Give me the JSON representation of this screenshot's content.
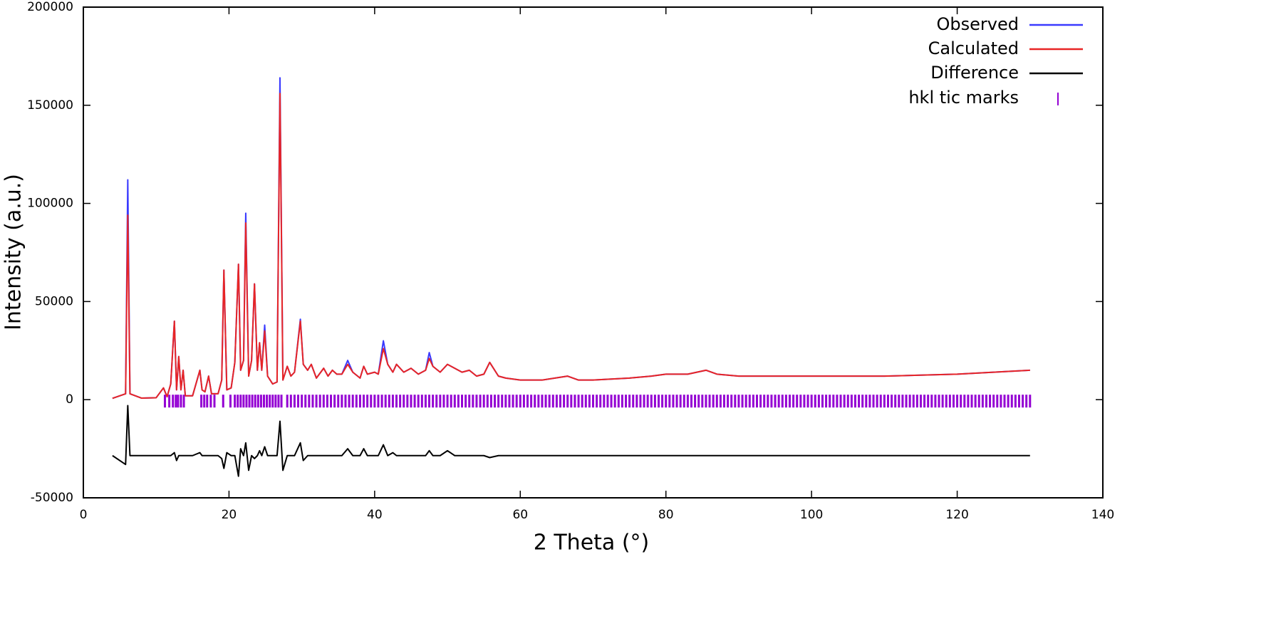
{
  "chart_data": {
    "type": "line",
    "xlabel": "2 Theta (°)",
    "ylabel": "Intensity (a.u.)",
    "xlim": [
      0,
      140
    ],
    "xticks": [
      0,
      20,
      40,
      60,
      80,
      100,
      120,
      140
    ],
    "ylim": [
      -50000,
      200000
    ],
    "yticks": [
      -50000,
      0,
      50000,
      100000,
      150000,
      200000
    ],
    "legend": "upper right",
    "x": [
      4,
      5.8,
      6.1,
      6.4,
      8,
      10,
      11,
      11.5,
      12,
      12.5,
      12.8,
      13.1,
      13.4,
      13.7,
      14,
      15,
      16,
      16.3,
      16.7,
      17.2,
      17.6,
      18.5,
      19,
      19.3,
      19.7,
      20.3,
      20.8,
      21.3,
      21.6,
      22,
      22.3,
      22.7,
      23.1,
      23.5,
      23.9,
      24.2,
      24.5,
      24.9,
      25.3,
      26,
      26.6,
      27,
      27.4,
      28,
      28.5,
      29,
      29.8,
      30.2,
      30.8,
      31.3,
      32,
      33,
      33.6,
      34.2,
      34.8,
      35.5,
      36.3,
      37,
      38,
      38.5,
      39,
      40,
      40.5,
      41.2,
      41.8,
      42.5,
      43,
      44,
      45,
      46,
      47,
      47.5,
      48,
      49,
      50,
      51,
      52,
      53,
      54,
      55,
      55.8,
      57,
      58,
      60,
      63,
      66.5,
      68,
      70,
      75,
      78,
      80,
      83,
      85.5,
      87,
      90,
      95,
      100,
      105,
      110,
      115,
      120,
      125,
      130
    ],
    "series": [
      {
        "name": "Observed",
        "color": "#3a3aff",
        "values": [
          700,
          3000,
          112000,
          3000,
          800,
          1000,
          6000,
          1500,
          8000,
          40000,
          5000,
          22000,
          5000,
          15000,
          2000,
          2000,
          15000,
          5000,
          4000,
          12000,
          3000,
          3000,
          10000,
          66000,
          5000,
          6000,
          19000,
          69000,
          15000,
          20000,
          95000,
          12000,
          20000,
          59000,
          15000,
          29000,
          15000,
          38000,
          12000,
          8000,
          9000,
          164000,
          10000,
          17000,
          12000,
          14000,
          41000,
          18000,
          15000,
          18000,
          11000,
          16000,
          12000,
          15000,
          13000,
          13000,
          20000,
          14000,
          11000,
          17000,
          13000,
          14000,
          13000,
          30000,
          18000,
          14000,
          18000,
          14000,
          16000,
          13000,
          15000,
          24000,
          17000,
          14000,
          18000,
          16000,
          14000,
          15000,
          12000,
          13000,
          19000,
          12000,
          11000,
          10000,
          10000,
          12000,
          10000,
          10000,
          11000,
          12000,
          13000,
          13000,
          15000,
          13000,
          12000,
          12000,
          12000,
          12000,
          12000,
          12500,
          13000,
          14000,
          15000
        ]
      },
      {
        "name": "Calculated",
        "color": "#e82525",
        "values": [
          700,
          3000,
          94000,
          3000,
          800,
          1000,
          6000,
          1500,
          8000,
          40000,
          5000,
          22000,
          5000,
          15000,
          2000,
          2000,
          15000,
          5000,
          4000,
          12000,
          3000,
          3000,
          10000,
          66000,
          5000,
          6000,
          19000,
          69000,
          15000,
          20000,
          90000,
          12000,
          20000,
          59000,
          15000,
          29000,
          15000,
          35000,
          12000,
          8000,
          9000,
          156000,
          10000,
          17000,
          12000,
          14000,
          40000,
          18000,
          15000,
          18000,
          11000,
          16000,
          12000,
          15000,
          13000,
          13000,
          18000,
          14000,
          11000,
          17000,
          13000,
          14000,
          13000,
          26000,
          18000,
          14000,
          18000,
          14000,
          16000,
          13000,
          15000,
          21000,
          17000,
          14000,
          18000,
          16000,
          14000,
          15000,
          12000,
          13000,
          19000,
          12000,
          11000,
          10000,
          10000,
          12000,
          10000,
          10000,
          11000,
          12000,
          13000,
          13000,
          15000,
          13000,
          12000,
          12000,
          12000,
          12000,
          12000,
          12500,
          13000,
          14000,
          15000
        ]
      },
      {
        "name": "Difference",
        "color": "#000000",
        "values": [
          -28500,
          -33000,
          -3000,
          -28500,
          -28500,
          -28500,
          -28500,
          -28500,
          -28500,
          -27000,
          -31000,
          -28500,
          -28500,
          -28500,
          -28500,
          -28500,
          -27000,
          -28500,
          -28500,
          -28500,
          -28500,
          -28500,
          -30000,
          -35000,
          -27000,
          -28500,
          -28500,
          -39000,
          -25000,
          -28500,
          -22000,
          -36000,
          -28500,
          -30000,
          -28500,
          -26000,
          -28500,
          -24000,
          -28500,
          -28500,
          -28500,
          -11000,
          -36000,
          -28500,
          -28500,
          -28500,
          -22000,
          -31000,
          -28500,
          -28500,
          -28500,
          -28500,
          -28500,
          -28500,
          -28500,
          -28500,
          -25000,
          -28500,
          -28500,
          -25000,
          -28500,
          -28500,
          -28500,
          -23000,
          -28500,
          -27000,
          -28500,
          -28500,
          -28500,
          -28500,
          -28500,
          -26000,
          -28500,
          -28500,
          -26000,
          -28500,
          -28500,
          -28500,
          -28500,
          -28500,
          -29500,
          -28500,
          -28500,
          -28500,
          -28500,
          -28500,
          -28500,
          -28500,
          -28500,
          -28500,
          -28500,
          -28500,
          -28500,
          -28500,
          -28500,
          -28500,
          -28500,
          -28500,
          -28500,
          -28500,
          -28500,
          -28500,
          -28500
        ]
      }
    ],
    "tick_marks": {
      "name": "hkl tic marks",
      "color": "#9400d3",
      "x": [
        11.2,
        11.8,
        12.3,
        12.7,
        13.0,
        13.4,
        13.8,
        16.2,
        16.6,
        17.0,
        17.5,
        18.0,
        19.2,
        20.2,
        20.8,
        21.2,
        21.6,
        22.0,
        22.4,
        22.8,
        23.2,
        23.6,
        24.0,
        24.4,
        24.8,
        25.2,
        25.6,
        26.0,
        26.4,
        26.8,
        27.2,
        28,
        28.5,
        29,
        29.5,
        30,
        30.5,
        31,
        31.5,
        32,
        32.5,
        33,
        33.5,
        34,
        34.5,
        35,
        35.5,
        36,
        36.5,
        37,
        37.5,
        38,
        38.5,
        39,
        39.5,
        40,
        40.5,
        41,
        41.5,
        42,
        42.5,
        43,
        43.5,
        44,
        44.5,
        45,
        45.5,
        46,
        46.5,
        47,
        47.5,
        48,
        48.5,
        49,
        49.5,
        50,
        50.5,
        51,
        51.5,
        52,
        52.5,
        53,
        53.5,
        54,
        54.5,
        55,
        55.5,
        56,
        56.5,
        57,
        57.5,
        58,
        58.5,
        59,
        59.5,
        60,
        60.5,
        61,
        61.5,
        62,
        62.5,
        63,
        63.5,
        64,
        64.5,
        65,
        65.5,
        66,
        66.5,
        67,
        67.5,
        68,
        68.5,
        69,
        69.5,
        70,
        70.5,
        71,
        71.5,
        72,
        72.5,
        73,
        73.5,
        74,
        74.5,
        75,
        75.5,
        76,
        76.5,
        77,
        77.5,
        78,
        78.5,
        79,
        79.5,
        80,
        80.5,
        81,
        81.5,
        82,
        82.5,
        83,
        83.5,
        84,
        84.5,
        85,
        85.5,
        86,
        86.5,
        87,
        87.5,
        88,
        88.5,
        89,
        89.5,
        90,
        90.5,
        91,
        91.5,
        92,
        92.5,
        93,
        93.5,
        94,
        94.5,
        95,
        95.5,
        96,
        96.5,
        97,
        97.5,
        98,
        98.5,
        99,
        99.5,
        100,
        100.5,
        101,
        101.5,
        102,
        102.5,
        103,
        103.5,
        104,
        104.5,
        105,
        105.5,
        106,
        106.5,
        107,
        107.5,
        108,
        108.5,
        109,
        109.5,
        110,
        110.5,
        111,
        111.5,
        112,
        112.5,
        113,
        113.5,
        114,
        114.5,
        115,
        115.5,
        116,
        116.5,
        117,
        117.5,
        118,
        118.5,
        119,
        119.5,
        120,
        120.5,
        121,
        121.5,
        122,
        122.5,
        123,
        123.5,
        124,
        124.5,
        125,
        125.5,
        126,
        126.5,
        127,
        127.5,
        128,
        128.5,
        129,
        129.5,
        130
      ]
    }
  }
}
